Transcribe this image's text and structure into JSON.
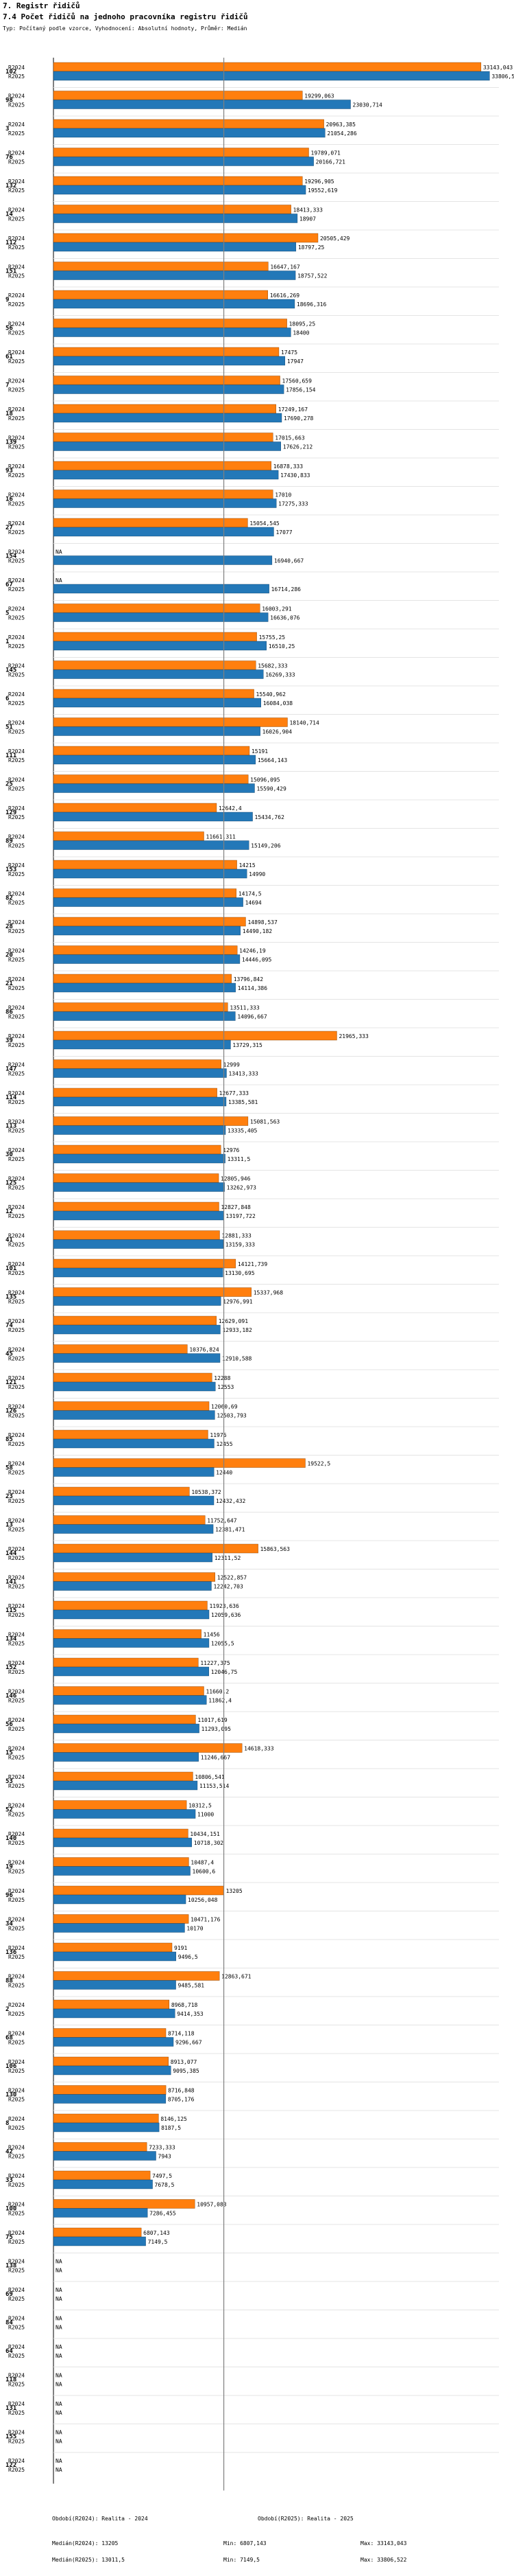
{
  "page_title": "7. Registr řidičů",
  "chart_title": "7.4 Počet řidičů na jednoho pracovníka registru řidičů",
  "subtitle": "Typ: Počítaný podle vzorce, Vyhodnocení: Absolutní hodnoty, Průměr: Medián",
  "series_labels": [
    "R2024",
    "R2025"
  ],
  "colors": {
    "r2024": "#ff7f0e",
    "r2025": "#2378b8",
    "median": "#808080"
  },
  "footer": {
    "period_2024": "Období(R2024): Realita - 2024",
    "period_2025": "Období(R2025): Realita - 2025",
    "median_2024": "Medián(R2024): 13205",
    "median_2025": "Medián(R2025): 13011,5",
    "min_2024": "Min: 6807,143",
    "min_2025": "Min: 7149,5",
    "max_2024": "Max: 33143,043",
    "max_2025": "Max: 33806,522"
  },
  "chart_data": {
    "type": "bar",
    "orientation": "horizontal",
    "title": "7.4 Počet řidičů na jednoho pracovníka registru řidičů",
    "median_2024": 13205,
    "xlim": [
      0,
      34000
    ],
    "series": [
      {
        "name": "R2024",
        "color": "#ff7f0e"
      },
      {
        "name": "R2025",
        "color": "#2378b8"
      }
    ],
    "categories": [
      {
        "id": "102",
        "r2024": 33143.043,
        "r2025": 33806.522,
        "l2024": "33143,043",
        "l2025": "33806,522"
      },
      {
        "id": "98",
        "r2024": 19299.063,
        "r2025": 23030.714,
        "l2024": "19299,063",
        "l2025": "23030,714"
      },
      {
        "id": "3",
        "r2024": 20963.385,
        "r2025": 21054.286,
        "l2024": "20963,385",
        "l2025": "21054,286"
      },
      {
        "id": "76",
        "r2024": 19789.071,
        "r2025": 20166.721,
        "l2024": "19789,071",
        "l2025": "20166,721"
      },
      {
        "id": "132",
        "r2024": 19296.905,
        "r2025": 19552.619,
        "l2024": "19296,905",
        "l2025": "19552,619"
      },
      {
        "id": "14",
        "r2024": 18413.333,
        "r2025": 18907,
        "l2024": "18413,333",
        "l2025": "18907"
      },
      {
        "id": "112",
        "r2024": 20505.429,
        "r2025": 18797.25,
        "l2024": "20505,429",
        "l2025": "18797,25"
      },
      {
        "id": "151",
        "r2024": 16647.167,
        "r2025": 18757.522,
        "l2024": "16647,167",
        "l2025": "18757,522"
      },
      {
        "id": "9",
        "r2024": 16616.269,
        "r2025": 18696.316,
        "l2024": "16616,269",
        "l2025": "18696,316"
      },
      {
        "id": "56",
        "r2024": 18095.25,
        "r2025": 18400,
        "l2024": "18095,25",
        "l2025": "18400"
      },
      {
        "id": "61",
        "r2024": 17475,
        "r2025": 17947,
        "l2024": "17475",
        "l2025": "17947"
      },
      {
        "id": "7",
        "r2024": 17560.659,
        "r2025": 17856.154,
        "l2024": "17560,659",
        "l2025": "17856,154"
      },
      {
        "id": "18",
        "r2024": 17249.167,
        "r2025": 17690.278,
        "l2024": "17249,167",
        "l2025": "17690,278"
      },
      {
        "id": "139",
        "r2024": 17015.663,
        "r2025": 17626.212,
        "l2024": "17015,663",
        "l2025": "17626,212"
      },
      {
        "id": "93",
        "r2024": 16878.333,
        "r2025": 17430.833,
        "l2024": "16878,333",
        "l2025": "17430,833"
      },
      {
        "id": "16",
        "r2024": 17010,
        "r2025": 17275.333,
        "l2024": "17010",
        "l2025": "17275,333"
      },
      {
        "id": "27",
        "r2024": 15054.545,
        "r2025": 17077,
        "l2024": "15054,545",
        "l2025": "17077"
      },
      {
        "id": "154",
        "r2024": null,
        "r2025": 16940.667,
        "l2024": "NA",
        "l2025": "16940,667"
      },
      {
        "id": "67",
        "r2024": null,
        "r2025": 16714.286,
        "l2024": "NA",
        "l2025": "16714,286"
      },
      {
        "id": "5",
        "r2024": 16003.291,
        "r2025": 16636.076,
        "l2024": "16003,291",
        "l2025": "16636,076"
      },
      {
        "id": "1",
        "r2024": 15755.25,
        "r2025": 16510.25,
        "l2024": "15755,25",
        "l2025": "16510,25"
      },
      {
        "id": "145",
        "r2024": 15682.333,
        "r2025": 16269.333,
        "l2024": "15682,333",
        "l2025": "16269,333"
      },
      {
        "id": "6",
        "r2024": 15540.962,
        "r2025": 16084.038,
        "l2024": "15540,962",
        "l2025": "16084,038"
      },
      {
        "id": "51",
        "r2024": 18140.714,
        "r2025": 16026.904,
        "l2024": "18140,714",
        "l2025": "16026,904"
      },
      {
        "id": "111",
        "r2024": 15191,
        "r2025": 15664.143,
        "l2024": "15191",
        "l2025": "15664,143"
      },
      {
        "id": "25",
        "r2024": 15096.095,
        "r2025": 15590.429,
        "l2024": "15096,095",
        "l2025": "15590,429"
      },
      {
        "id": "129",
        "r2024": 12642.4,
        "r2025": 15434.762,
        "l2024": "12642,4",
        "l2025": "15434,762"
      },
      {
        "id": "89",
        "r2024": 11661.311,
        "r2025": 15149.206,
        "l2024": "11661,311",
        "l2025": "15149,206"
      },
      {
        "id": "153",
        "r2024": 14215,
        "r2025": 14990,
        "l2024": "14215",
        "l2025": "14990"
      },
      {
        "id": "82",
        "r2024": 14174.5,
        "r2025": 14694,
        "l2024": "14174,5",
        "l2025": "14694"
      },
      {
        "id": "28",
        "r2024": 14898.537,
        "r2025": 14490.182,
        "l2024": "14898,537",
        "l2025": "14490,182"
      },
      {
        "id": "20",
        "r2024": 14246.19,
        "r2025": 14446.095,
        "l2024": "14246,19",
        "l2025": "14446,095"
      },
      {
        "id": "21",
        "r2024": 13796.842,
        "r2025": 14114.386,
        "l2024": "13796,842",
        "l2025": "14114,386"
      },
      {
        "id": "86",
        "r2024": 13511.333,
        "r2025": 14096.667,
        "l2024": "13511,333",
        "l2025": "14096,667"
      },
      {
        "id": "39",
        "r2024": 21965.333,
        "r2025": 13729.315,
        "l2024": "21965,333",
        "l2025": "13729,315"
      },
      {
        "id": "147",
        "r2024": 12999,
        "r2025": 13413.333,
        "l2024": "12999",
        "l2025": "13413,333"
      },
      {
        "id": "114",
        "r2024": 12677.333,
        "r2025": 13385.581,
        "l2024": "12677,333",
        "l2025": "13385,581"
      },
      {
        "id": "113",
        "r2024": 15081.563,
        "r2025": 13335.405,
        "l2024": "15081,563",
        "l2025": "13335,405"
      },
      {
        "id": "30",
        "r2024": 12976,
        "r2025": 13311.5,
        "l2024": "12976",
        "l2025": "13311,5"
      },
      {
        "id": "125",
        "r2024": 12805.946,
        "r2025": 13262.973,
        "l2024": "12805,946",
        "l2025": "13262,973"
      },
      {
        "id": "12",
        "r2024": 12827.848,
        "r2025": 13197.722,
        "l2024": "12827,848",
        "l2025": "13197,722"
      },
      {
        "id": "41",
        "r2024": 12881.333,
        "r2025": 13159.333,
        "l2024": "12881,333",
        "l2025": "13159,333"
      },
      {
        "id": "101",
        "r2024": 14121.739,
        "r2025": 13130.695,
        "l2024": "14121,739",
        "l2025": "13130,695"
      },
      {
        "id": "135",
        "r2024": 15337.968,
        "r2025": 12976.991,
        "l2024": "15337,968",
        "l2025": "12976,991"
      },
      {
        "id": "74",
        "r2024": 12629.091,
        "r2025": 12933.182,
        "l2024": "12629,091",
        "l2025": "12933,182"
      },
      {
        "id": "45",
        "r2024": 10376.824,
        "r2025": 12910.588,
        "l2024": "10376,824",
        "l2025": "12910,588"
      },
      {
        "id": "121",
        "r2024": 12288,
        "r2025": 12553,
        "l2024": "12288",
        "l2025": "12553"
      },
      {
        "id": "126",
        "r2024": 12060.69,
        "r2025": 12503.793,
        "l2024": "12060,69",
        "l2025": "12503,793"
      },
      {
        "id": "85",
        "r2024": 11976,
        "r2025": 12455,
        "l2024": "11976",
        "l2025": "12455"
      },
      {
        "id": "58",
        "r2024": 19522.5,
        "r2025": 12440,
        "l2024": "19522,5",
        "l2025": "12440"
      },
      {
        "id": "23",
        "r2024": 10538.372,
        "r2025": 12432.432,
        "l2024": "10538,372",
        "l2025": "12432,432"
      },
      {
        "id": "13",
        "r2024": 11752.647,
        "r2025": 12381.471,
        "l2024": "11752,647",
        "l2025": "12381,471"
      },
      {
        "id": "144",
        "r2024": 15863.563,
        "r2025": 12311.52,
        "l2024": "15863,563",
        "l2025": "12311,52"
      },
      {
        "id": "141",
        "r2024": 12522.857,
        "r2025": 12242.703,
        "l2024": "12522,857",
        "l2025": "12242,703"
      },
      {
        "id": "115",
        "r2024": 11923.636,
        "r2025": 12059.636,
        "l2024": "11923,636",
        "l2025": "12059,636"
      },
      {
        "id": "134",
        "r2024": 11456,
        "r2025": 12055.5,
        "l2024": "11456",
        "l2025": "12055,5"
      },
      {
        "id": "152",
        "r2024": 11227.375,
        "r2025": 12046.75,
        "l2024": "11227,375",
        "l2025": "12046,75"
      },
      {
        "id": "146",
        "r2024": 11660.2,
        "r2025": 11862.4,
        "l2024": "11660,2",
        "l2025": "11862,4"
      },
      {
        "id": "56",
        "r2024": 11017.619,
        "r2025": 11293.095,
        "l2024": "11017,619",
        "l2025": "11293,095"
      },
      {
        "id": "15",
        "r2024": 14618.333,
        "r2025": 11246.667,
        "l2024": "14618,333",
        "l2025": "11246,667"
      },
      {
        "id": "53",
        "r2024": 10806.541,
        "r2025": 11153.514,
        "l2024": "10806,541",
        "l2025": "11153,514"
      },
      {
        "id": "52",
        "r2024": 10312.5,
        "r2025": 11000,
        "l2024": "10312,5",
        "l2025": "11000"
      },
      {
        "id": "140",
        "r2024": 10434.151,
        "r2025": 10718.302,
        "l2024": "10434,151",
        "l2025": "10718,302"
      },
      {
        "id": "19",
        "r2024": 10487.4,
        "r2025": 10600.6,
        "l2024": "10487,4",
        "l2025": "10600,6"
      },
      {
        "id": "96",
        "r2024": 13205,
        "r2025": 10256.048,
        "l2024": "13205",
        "l2025": "10256,048"
      },
      {
        "id": "34",
        "r2024": 10471.176,
        "r2025": 10170,
        "l2024": "10471,176",
        "l2025": "10170"
      },
      {
        "id": "136",
        "r2024": 9191,
        "r2025": 9496.5,
        "l2024": "9191",
        "l2025": "9496,5"
      },
      {
        "id": "88",
        "r2024": 12863.671,
        "r2025": 9485.581,
        "l2024": "12863,671",
        "l2025": "9485,581"
      },
      {
        "id": "2",
        "r2024": 8968.718,
        "r2025": 9414.353,
        "l2024": "8968,718",
        "l2025": "9414,353"
      },
      {
        "id": "68",
        "r2024": 8714.118,
        "r2025": 9296.667,
        "l2024": "8714,118",
        "l2025": "9296,667"
      },
      {
        "id": "106",
        "r2024": 8913.077,
        "r2025": 9095.385,
        "l2024": "8913,077",
        "l2025": "9095,385"
      },
      {
        "id": "130",
        "r2024": 8716.848,
        "r2025": 8705.176,
        "l2024": "8716,848",
        "l2025": "8705,176"
      },
      {
        "id": "8",
        "r2024": 8146.125,
        "r2025": 8187.5,
        "l2024": "8146,125",
        "l2025": "8187,5"
      },
      {
        "id": "42",
        "r2024": 7233.333,
        "r2025": 7943,
        "l2024": "7233,333",
        "l2025": "7943"
      },
      {
        "id": "33",
        "r2024": 7497.5,
        "r2025": 7678.5,
        "l2024": "7497,5",
        "l2025": "7678,5"
      },
      {
        "id": "100",
        "r2024": 10957.083,
        "r2025": 7286.455,
        "l2024": "10957,083",
        "l2025": "7286,455"
      },
      {
        "id": "75",
        "r2024": 6807.143,
        "r2025": 7149.5,
        "l2024": "6807,143",
        "l2025": "7149,5"
      },
      {
        "id": "138",
        "r2024": null,
        "r2025": null,
        "l2024": "NA",
        "l2025": "NA"
      },
      {
        "id": "69",
        "r2024": null,
        "r2025": null,
        "l2024": "NA",
        "l2025": "NA"
      },
      {
        "id": "84",
        "r2024": null,
        "r2025": null,
        "l2024": "NA",
        "l2025": "NA"
      },
      {
        "id": "64",
        "r2024": null,
        "r2025": null,
        "l2024": "NA",
        "l2025": "NA"
      },
      {
        "id": "118",
        "r2024": null,
        "r2025": null,
        "l2024": "NA",
        "l2025": "NA"
      },
      {
        "id": "131",
        "r2024": null,
        "r2025": null,
        "l2024": "NA",
        "l2025": "NA"
      },
      {
        "id": "155",
        "r2024": null,
        "r2025": null,
        "l2024": "NA",
        "l2025": "NA"
      },
      {
        "id": "122",
        "r2024": null,
        "r2025": null,
        "l2024": "NA",
        "l2025": "NA"
      }
    ]
  }
}
